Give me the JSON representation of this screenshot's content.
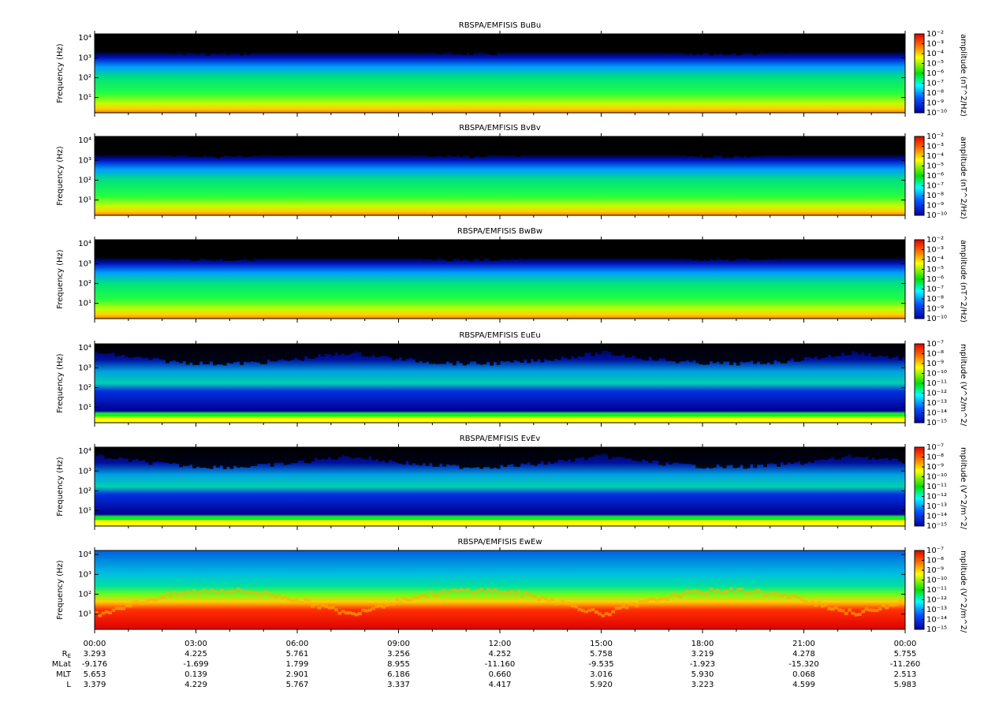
{
  "chart_data": [
    {
      "type": "spectrogram",
      "title": "RBSPA/EMFISIS  BuBu",
      "ylabel": "Frequency (Hz)",
      "log": true,
      "ylim": [
        1.7,
        16000
      ],
      "yticks": [
        {
          "value": 10,
          "label": "10¹"
        },
        {
          "value": 100,
          "label": "10²"
        },
        {
          "value": 1000,
          "label": "10³"
        },
        {
          "value": 10000,
          "label": "10⁴"
        }
      ],
      "colorbar_label": "amplitude (nT^2/Hz)",
      "clim": [
        1e-10,
        0.01
      ],
      "cticks": [
        {
          "value": 0.01,
          "label": "10⁻²"
        },
        {
          "value": 0.001,
          "label": "10⁻³"
        },
        {
          "value": 0.0001,
          "label": "10⁻⁴"
        },
        {
          "value": 1e-05,
          "label": "10⁻⁵"
        },
        {
          "value": 1e-06,
          "label": "10⁻⁶"
        },
        {
          "value": 1e-07,
          "label": "10⁻⁷"
        },
        {
          "value": 1e-08,
          "label": "10⁻⁸"
        },
        {
          "value": 1e-09,
          "label": "10⁻⁹"
        },
        {
          "value": 1e-10,
          "label": "10⁻¹⁰"
        }
      ]
    },
    {
      "type": "spectrogram",
      "title": "RBSPA/EMFISIS  BvBv",
      "ylabel": "Frequency (Hz)",
      "log": true,
      "ylim": [
        1.7,
        16000
      ],
      "yticks": [
        {
          "value": 10,
          "label": "10¹"
        },
        {
          "value": 100,
          "label": "10²"
        },
        {
          "value": 1000,
          "label": "10³"
        },
        {
          "value": 10000,
          "label": "10⁴"
        }
      ],
      "colorbar_label": "amplitude (nT^2/Hz)",
      "clim": [
        1e-10,
        0.01
      ],
      "cticks": [
        {
          "value": 0.01,
          "label": "10⁻²"
        },
        {
          "value": 0.001,
          "label": "10⁻³"
        },
        {
          "value": 0.0001,
          "label": "10⁻⁴"
        },
        {
          "value": 1e-05,
          "label": "10⁻⁵"
        },
        {
          "value": 1e-06,
          "label": "10⁻⁶"
        },
        {
          "value": 1e-07,
          "label": "10⁻⁷"
        },
        {
          "value": 1e-08,
          "label": "10⁻⁸"
        },
        {
          "value": 1e-09,
          "label": "10⁻⁹"
        },
        {
          "value": 1e-10,
          "label": "10⁻¹⁰"
        }
      ]
    },
    {
      "type": "spectrogram",
      "title": "RBSPA/EMFISIS  BwBw",
      "ylabel": "Frequency (Hz)",
      "log": true,
      "ylim": [
        1.7,
        16000
      ],
      "yticks": [
        {
          "value": 10,
          "label": "10¹"
        },
        {
          "value": 100,
          "label": "10²"
        },
        {
          "value": 1000,
          "label": "10³"
        },
        {
          "value": 10000,
          "label": "10⁴"
        }
      ],
      "colorbar_label": "amplitude (nT^2/Hz)",
      "clim": [
        1e-10,
        0.01
      ],
      "cticks": [
        {
          "value": 0.01,
          "label": "10⁻²"
        },
        {
          "value": 0.001,
          "label": "10⁻³"
        },
        {
          "value": 0.0001,
          "label": "10⁻⁴"
        },
        {
          "value": 1e-05,
          "label": "10⁻⁵"
        },
        {
          "value": 1e-06,
          "label": "10⁻⁶"
        },
        {
          "value": 1e-07,
          "label": "10⁻⁷"
        },
        {
          "value": 1e-08,
          "label": "10⁻⁸"
        },
        {
          "value": 1e-09,
          "label": "10⁻⁹"
        },
        {
          "value": 1e-10,
          "label": "10⁻¹⁰"
        }
      ]
    },
    {
      "type": "spectrogram",
      "title": "RBSPA/EMFISIS  EuEu",
      "ylabel": "Frequency (Hz)",
      "log": true,
      "ylim": [
        1.7,
        16000
      ],
      "yticks": [
        {
          "value": 10,
          "label": "10¹"
        },
        {
          "value": 100,
          "label": "10²"
        },
        {
          "value": 1000,
          "label": "10³"
        },
        {
          "value": 10000,
          "label": "10⁴"
        }
      ],
      "colorbar_label": "mplitude (V^2/m^2/",
      "clim": [
        1e-15,
        1e-07
      ],
      "cticks": [
        {
          "value": 1e-07,
          "label": "10⁻⁷"
        },
        {
          "value": 1e-08,
          "label": "10⁻⁸"
        },
        {
          "value": 1e-09,
          "label": "10⁻⁹"
        },
        {
          "value": 1e-10,
          "label": "10⁻¹⁰"
        },
        {
          "value": 1e-11,
          "label": "10⁻¹¹"
        },
        {
          "value": 1e-12,
          "label": "10⁻¹²"
        },
        {
          "value": 1e-13,
          "label": "10⁻¹³"
        },
        {
          "value": 1e-14,
          "label": "10⁻¹⁴"
        },
        {
          "value": 1e-15,
          "label": "10⁻¹⁵"
        }
      ]
    },
    {
      "type": "spectrogram",
      "title": "RBSPA/EMFISIS  EvEv",
      "ylabel": "Frequency (Hz)",
      "log": true,
      "ylim": [
        1.7,
        16000
      ],
      "yticks": [
        {
          "value": 10,
          "label": "10¹"
        },
        {
          "value": 100,
          "label": "10²"
        },
        {
          "value": 1000,
          "label": "10³"
        },
        {
          "value": 10000,
          "label": "10⁴"
        }
      ],
      "colorbar_label": "mplitude (V^2/m^2/",
      "clim": [
        1e-15,
        1e-07
      ],
      "cticks": [
        {
          "value": 1e-07,
          "label": "10⁻⁷"
        },
        {
          "value": 1e-08,
          "label": "10⁻⁸"
        },
        {
          "value": 1e-09,
          "label": "10⁻⁹"
        },
        {
          "value": 1e-10,
          "label": "10⁻¹⁰"
        },
        {
          "value": 1e-11,
          "label": "10⁻¹¹"
        },
        {
          "value": 1e-12,
          "label": "10⁻¹²"
        },
        {
          "value": 1e-13,
          "label": "10⁻¹³"
        },
        {
          "value": 1e-14,
          "label": "10⁻¹⁴"
        },
        {
          "value": 1e-15,
          "label": "10⁻¹⁵"
        }
      ]
    },
    {
      "type": "spectrogram",
      "title": "RBSPA/EMFISIS  EwEw",
      "ylabel": "Frequency (Hz)",
      "log": true,
      "ylim": [
        1.7,
        16000
      ],
      "yticks": [
        {
          "value": 10,
          "label": "10¹"
        },
        {
          "value": 100,
          "label": "10²"
        },
        {
          "value": 1000,
          "label": "10³"
        },
        {
          "value": 10000,
          "label": "10⁴"
        }
      ],
      "colorbar_label": "mplitude (V^2/m^2/",
      "clim": [
        1e-15,
        1e-07
      ],
      "cticks": [
        {
          "value": 1e-07,
          "label": "10⁻⁷"
        },
        {
          "value": 1e-08,
          "label": "10⁻⁸"
        },
        {
          "value": 1e-09,
          "label": "10⁻⁹"
        },
        {
          "value": 1e-10,
          "label": "10⁻¹⁰"
        },
        {
          "value": 1e-11,
          "label": "10⁻¹¹"
        },
        {
          "value": 1e-12,
          "label": "10⁻¹²"
        },
        {
          "value": 1e-13,
          "label": "10⁻¹³"
        },
        {
          "value": 1e-14,
          "label": "10⁻¹⁴"
        },
        {
          "value": 1e-15,
          "label": "10⁻¹⁵"
        }
      ],
      "xlim": [
        0,
        24
      ],
      "xticks": [
        {
          "value": 0,
          "label": "00:00"
        },
        {
          "value": 3,
          "label": "03:00"
        },
        {
          "value": 6,
          "label": "06:00"
        },
        {
          "value": 9,
          "label": "09:00"
        },
        {
          "value": 12,
          "label": "12:00"
        },
        {
          "value": 15,
          "label": "15:00"
        },
        {
          "value": 18,
          "label": "18:00"
        },
        {
          "value": 21,
          "label": "21:00"
        },
        {
          "value": 24,
          "label": "00:00"
        }
      ],
      "xminorticks": [
        1,
        2,
        4,
        5,
        7,
        8,
        10,
        11,
        13,
        14,
        16,
        17,
        19,
        20,
        22,
        23
      ]
    }
  ],
  "ephemeris": {
    "rows": [
      {
        "label": "R",
        "sub": "E",
        "values": [
          "3.293",
          "4.225",
          "5.761",
          "3.256",
          "4.252",
          "5.758",
          "3.219",
          "4.278",
          "5.755"
        ]
      },
      {
        "label": "MLat",
        "values": [
          "-9.176",
          "-1.699",
          "1.799",
          "8.955",
          "-11.160",
          "-9.535",
          "-1.923",
          "-15.320",
          "-11.260"
        ]
      },
      {
        "label": "MLT",
        "values": [
          "5.653",
          "0.139",
          "2.901",
          "6.186",
          "0.660",
          "3.016",
          "5.930",
          "0.068",
          "2.513"
        ]
      },
      {
        "label": "L",
        "values": [
          "3.379",
          "4.229",
          "5.767",
          "3.337",
          "4.417",
          "5.920",
          "3.223",
          "4.599",
          "5.983"
        ]
      }
    ]
  }
}
